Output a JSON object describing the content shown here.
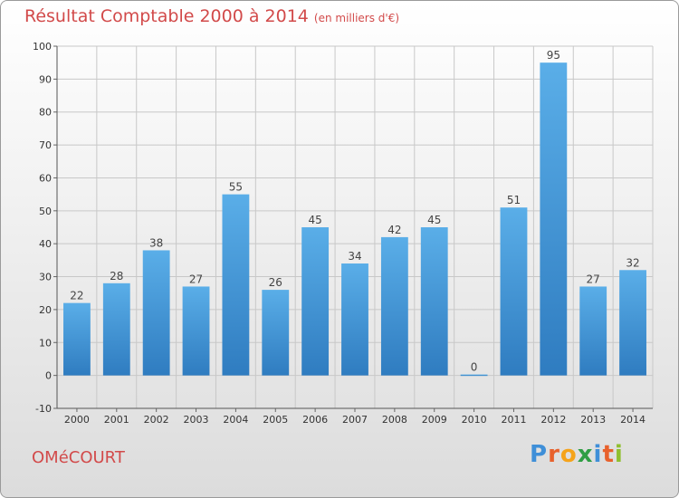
{
  "title": "Résultat Comptable 2000 à 2014",
  "subtitle": "(en milliers d'€)",
  "commune": "OMéCOURT",
  "logo": {
    "text": "Proxiti",
    "letters": [
      "P",
      "r",
      "o",
      "x",
      "i",
      "t",
      "i"
    ],
    "colors": [
      "#3f8fd8",
      "#e8612c",
      "#f5a31a",
      "#2f9e44",
      "#3f8fd8",
      "#e8612c",
      "#8fbf2f"
    ]
  },
  "colors": {
    "title": "#d24a4a",
    "bar_top": "#5aaee8",
    "bar_bottom": "#2f7cc0",
    "grid": "#c8c8c8"
  },
  "chart_data": {
    "type": "bar",
    "title": "Résultat Comptable 2000 à 2014",
    "subtitle": "(en milliers d'€)",
    "categories": [
      "2000",
      "2001",
      "2002",
      "2003",
      "2004",
      "2005",
      "2006",
      "2007",
      "2008",
      "2009",
      "2010",
      "2011",
      "2012",
      "2013",
      "2014"
    ],
    "values": [
      22,
      28,
      38,
      27,
      55,
      26,
      45,
      34,
      42,
      45,
      0,
      51,
      95,
      27,
      32
    ],
    "ylim": [
      -10,
      100
    ],
    "yticks": [
      -10,
      0,
      10,
      20,
      30,
      40,
      50,
      60,
      70,
      80,
      90,
      100
    ],
    "grid": true,
    "data_labels": true
  }
}
